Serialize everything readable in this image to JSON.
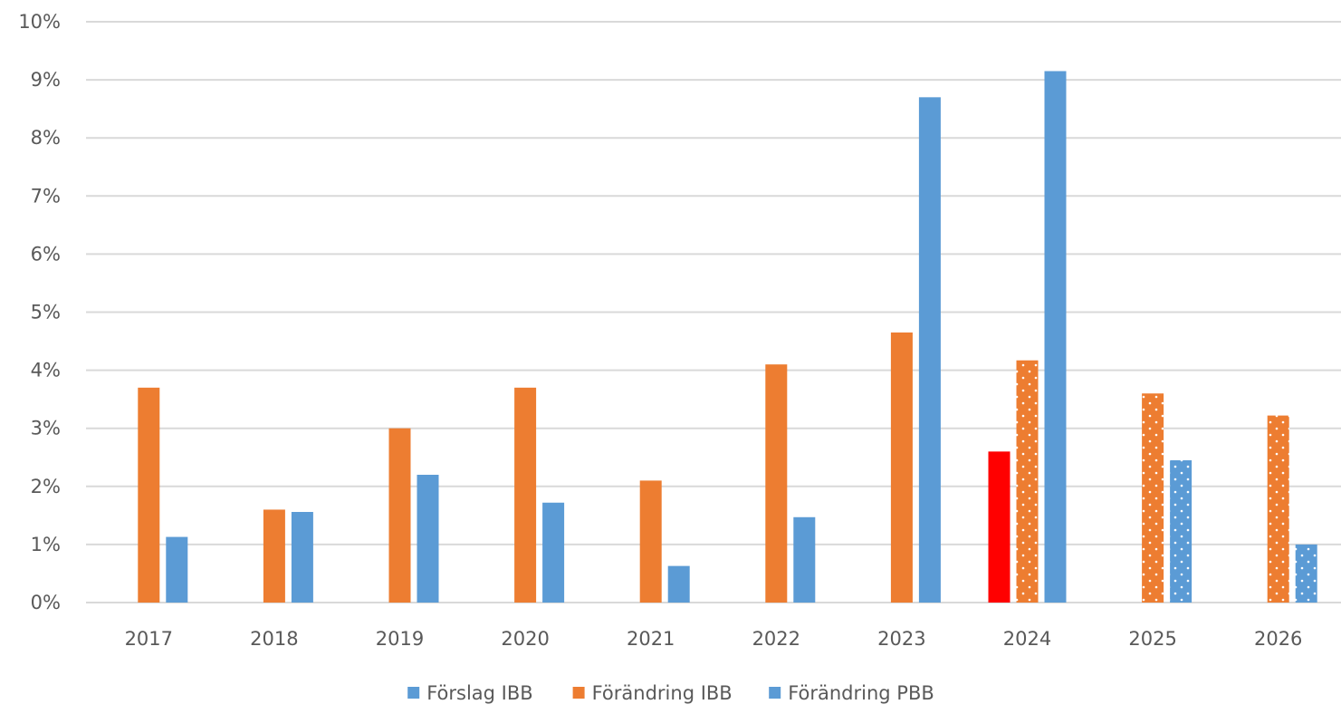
{
  "chart_data": {
    "type": "bar",
    "title": "",
    "xlabel": "",
    "ylabel": "",
    "ylim": [
      0,
      10
    ],
    "y_ticks": [
      "0%",
      "1%",
      "2%",
      "3%",
      "4%",
      "5%",
      "6%",
      "7%",
      "8%",
      "9%",
      "10%"
    ],
    "grid": true,
    "legend_position": "bottom",
    "categories": [
      "2017",
      "2018",
      "2019",
      "2020",
      "2021",
      "2022",
      "2023",
      "2024",
      "2025",
      "2026"
    ],
    "series": [
      {
        "name": "Förslag IBB",
        "color": "#5B9BD5",
        "values": [
          null,
          null,
          null,
          null,
          null,
          null,
          null,
          2.6,
          null,
          null
        ],
        "bar_color_override": "#FF0000"
      },
      {
        "name": "Förändring IBB",
        "color": "#ED7D31",
        "values": [
          3.7,
          1.6,
          3.0,
          3.7,
          2.1,
          4.1,
          4.65,
          4.17,
          3.6,
          3.22
        ],
        "dotted_from_index": 7
      },
      {
        "name": "Förändring PBB",
        "color": "#5B9BD5",
        "values": [
          1.13,
          1.56,
          2.2,
          1.72,
          0.63,
          1.47,
          8.7,
          9.15,
          2.45,
          1.0
        ],
        "dotted_from_index": 8
      }
    ]
  }
}
